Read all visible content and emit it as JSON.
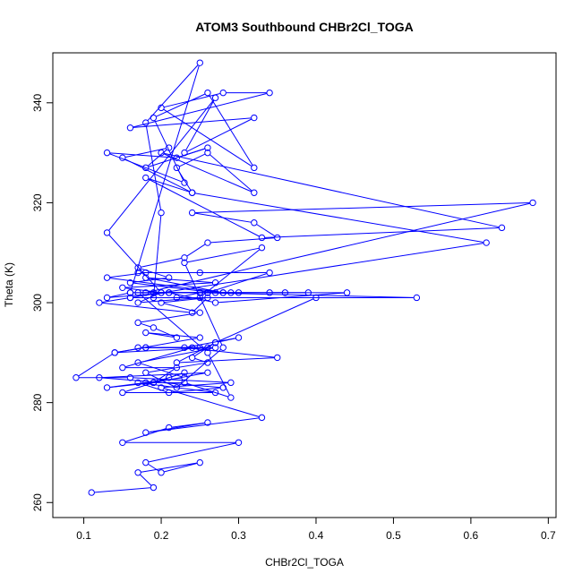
{
  "chart_data": {
    "type": "line",
    "title": "ATOM3 Southbound CHBr2Cl_TOGA",
    "xlabel": "CHBr2Cl_TOGA",
    "ylabel": "Theta (K)",
    "xlim": [
      0.06,
      0.71
    ],
    "ylim": [
      257,
      350
    ],
    "x_ticks": [
      "0.1",
      "0.2",
      "0.3",
      "0.4",
      "0.5",
      "0.6",
      "0.7"
    ],
    "y_ticks": [
      "260",
      "280",
      "300",
      "320",
      "340"
    ],
    "grid": false,
    "legend": "none",
    "markers": "open-circle",
    "color": "#0000ff",
    "series": [
      {
        "x": [
          0.11,
          0.19,
          0.17,
          0.25,
          0.2,
          0.18,
          0.3,
          0.15,
          0.21,
          0.26,
          0.18,
          0.33,
          0.2,
          0.29,
          0.16,
          0.09,
          0.14,
          0.18,
          0.27,
          0.17,
          0.23,
          0.13,
          0.19,
          0.26,
          0.12,
          0.28,
          0.21,
          0.17,
          0.27,
          0.15,
          0.23,
          0.21,
          0.19,
          0.22,
          0.15,
          0.24,
          0.18,
          0.25,
          0.17,
          0.26,
          0.14,
          0.25,
          0.18,
          0.22,
          0.19,
          0.17,
          0.25,
          0.2,
          0.26,
          0.24,
          0.12,
          0.16,
          0.22,
          0.25,
          0.16,
          0.29,
          0.2,
          0.15,
          0.27,
          0.18,
          0.28,
          0.13,
          0.18,
          0.25,
          0.17,
          0.34,
          0.26,
          0.21,
          0.28,
          0.3,
          0.36,
          0.25,
          0.19,
          0.27,
          0.16,
          0.21,
          0.17,
          0.23,
          0.26,
          0.35,
          0.32,
          0.24,
          0.68,
          0.18,
          0.39,
          0.26,
          0.25,
          0.53,
          0.16,
          0.62,
          0.24,
          0.18,
          0.33,
          0.64,
          0.2,
          0.32,
          0.26,
          0.22,
          0.24,
          0.15,
          0.21,
          0.18,
          0.26,
          0.22,
          0.13,
          0.23,
          0.19,
          0.26,
          0.32,
          0.2,
          0.28,
          0.34,
          0.16,
          0.32,
          0.23,
          0.27,
          0.13,
          0.2,
          0.17,
          0.25,
          0.33,
          0.23,
          0.28,
          0.22,
          0.18,
          0.26,
          0.24,
          0.27,
          0.3,
          0.23,
          0.35,
          0.22,
          0.27,
          0.4,
          0.19,
          0.2,
          0.18,
          0.25,
          0.16,
          0.13,
          0.21,
          0.27,
          0.44,
          0.34,
          0.17,
          0.26,
          0.29,
          0.23,
          0.18
        ],
        "y": [
          262,
          263,
          266,
          268,
          266,
          268,
          272,
          272,
          275,
          276,
          274,
          277,
          283,
          284,
          285,
          285,
          290,
          291,
          291,
          288,
          285,
          283,
          284,
          286,
          285,
          283,
          282,
          284,
          282,
          282,
          286,
          285,
          284,
          287,
          287,
          291,
          291,
          291,
          291,
          291,
          290,
          293,
          294,
          293,
          295,
          296,
          298,
          300,
          301,
          298,
          300,
          301,
          301,
          302,
          302,
          302,
          302,
          303,
          304,
          305,
          302,
          305,
          306,
          306,
          306,
          306,
          302,
          302,
          302,
          302,
          302,
          302,
          302,
          302,
          304,
          305,
          307,
          309,
          312,
          313,
          316,
          318,
          320,
          302,
          302,
          302,
          302,
          301,
          301,
          312,
          322,
          325,
          313,
          315,
          330,
          322,
          330,
          327,
          322,
          329,
          331,
          327,
          331,
          329,
          330,
          324,
          337,
          342,
          327,
          339,
          342,
          342,
          335,
          337,
          330,
          341,
          314,
          302,
          300,
          301,
          311,
          308,
          291,
          283,
          286,
          288,
          289,
          292,
          293,
          291,
          289,
          288,
          292,
          301,
          301,
          318,
          336,
          348,
          302,
          301,
          302,
          300,
          302,
          302,
          302,
          290,
          281,
          284,
          284
        ],
        "connected": true
      }
    ]
  }
}
